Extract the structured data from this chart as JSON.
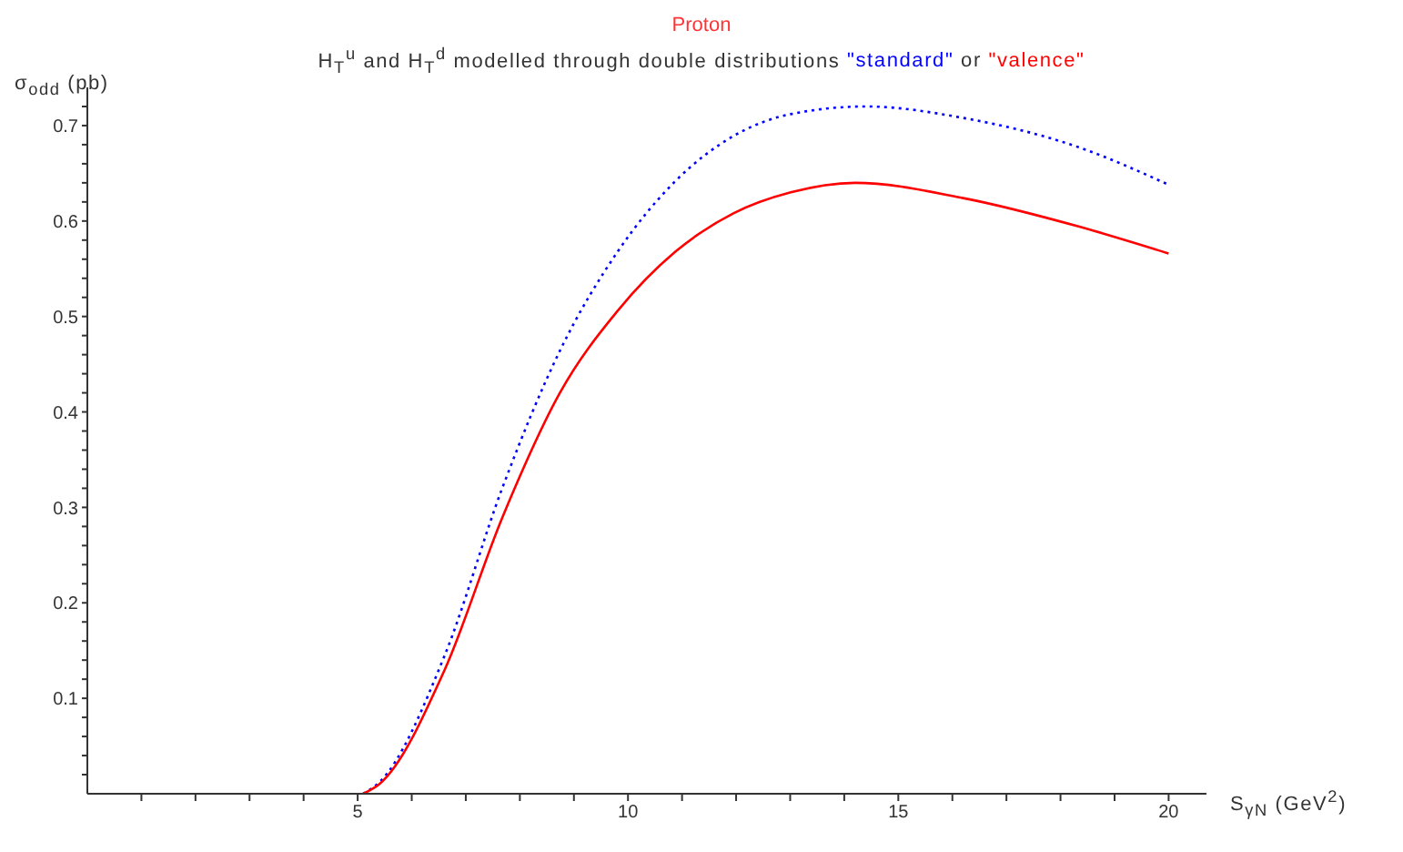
{
  "chart_data": {
    "type": "line",
    "title": "Proton",
    "subtitle": "H$_{T}$$^{u}$ and H$_{T}$$^{d}$ modelled through double distributions",
    "annotations": [
      "or"
    ],
    "xlabel": "S$_{γN}$ (GeV$^{2}$)",
    "ylabel": "σ$_{odd}$ (pb)",
    "xlim": [
      0,
      20.7
    ],
    "ylim": [
      0,
      0.74
    ],
    "xticks": [
      {
        "value": 1,
        "label": null
      },
      {
        "value": 2,
        "label": null
      },
      {
        "value": 3,
        "label": null
      },
      {
        "value": 4,
        "label": null
      },
      5,
      {
        "value": 6,
        "label": null
      },
      {
        "value": 7,
        "label": null
      },
      {
        "value": 8,
        "label": null
      },
      {
        "value": 9,
        "label": null
      },
      10,
      {
        "value": 11,
        "label": null
      },
      {
        "value": 12,
        "label": null
      },
      {
        "value": 13,
        "label": null
      },
      {
        "value": 14,
        "label": null
      },
      15,
      {
        "value": 16,
        "label": null
      },
      {
        "value": 17,
        "label": null
      },
      {
        "value": 18,
        "label": null
      },
      {
        "value": 19,
        "label": null
      },
      20
    ],
    "yticks": [
      {
        "value": 0.02,
        "label": null
      },
      {
        "value": 0.04,
        "label": null
      },
      {
        "value": 0.06,
        "label": null
      },
      {
        "value": 0.08,
        "label": null
      },
      0.1,
      {
        "value": 0.12,
        "label": null
      },
      {
        "value": 0.14,
        "label": null
      },
      {
        "value": 0.16,
        "label": null
      },
      {
        "value": 0.18,
        "label": null
      },
      0.2,
      {
        "value": 0.22,
        "label": null
      },
      {
        "value": 0.24,
        "label": null
      },
      {
        "value": 0.26,
        "label": null
      },
      {
        "value": 0.28,
        "label": null
      },
      0.3,
      {
        "value": 0.32,
        "label": null
      },
      {
        "value": 0.34,
        "label": null
      },
      {
        "value": 0.36,
        "label": null
      },
      {
        "value": 0.38,
        "label": null
      },
      0.4,
      {
        "value": 0.42,
        "label": null
      },
      {
        "value": 0.44,
        "label": null
      },
      {
        "value": 0.46,
        "label": null
      },
      {
        "value": 0.48,
        "label": null
      },
      0.5,
      {
        "value": 0.52,
        "label": null
      },
      {
        "value": 0.54,
        "label": null
      },
      {
        "value": 0.56,
        "label": null
      },
      {
        "value": 0.58,
        "label": null
      },
      0.6,
      {
        "value": 0.62,
        "label": null
      },
      {
        "value": 0.64,
        "label": null
      },
      {
        "value": 0.66,
        "label": null
      },
      {
        "value": 0.68,
        "label": null
      },
      0.7,
      {
        "value": 0.72,
        "label": null
      }
    ],
    "legend": "top",
    "series": [
      {
        "name": "\"standard\"",
        "color": "#0000ff",
        "line_style": "dotted",
        "x": [
          5.1,
          5.4,
          6.61,
          7.68,
          8.74,
          9.81,
          10.88,
          11.95,
          13.01,
          14.4,
          16.2,
          18.35,
          20
        ],
        "values": [
          0,
          0.012,
          0.145,
          0.321,
          0.464,
          0.568,
          0.642,
          0.689,
          0.712,
          0.72,
          0.708,
          0.677,
          0.638
        ]
      },
      {
        "name": "\"valence\"",
        "color": "#ff0000",
        "line_style": "solid",
        "x": [
          5.1,
          5.4,
          6.61,
          7.68,
          8.74,
          9.81,
          10.88,
          11.95,
          13.01,
          14.2,
          16.2,
          18.35,
          20
        ],
        "values": [
          0,
          0.01,
          0.13,
          0.29,
          0.42,
          0.506,
          0.568,
          0.608,
          0.63,
          0.64,
          0.624,
          0.594,
          0.566
        ]
      }
    ]
  }
}
